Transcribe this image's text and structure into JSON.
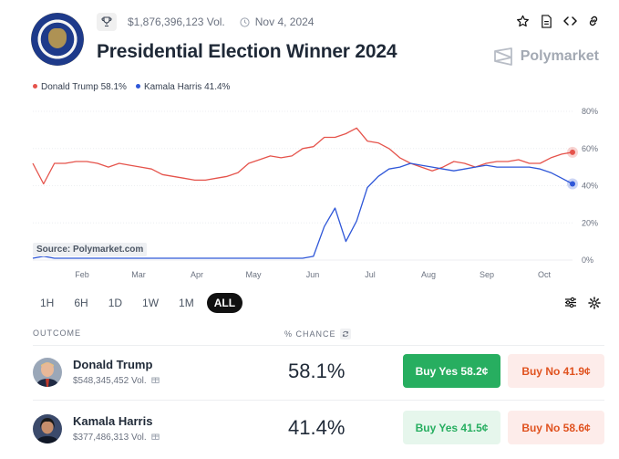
{
  "header": {
    "volume": "$1,876,396,123 Vol.",
    "date": "Nov 4, 2024",
    "title": "Presidential Election Winner 2024",
    "brand": "Polymarket",
    "icons": [
      "trophy-icon",
      "clock-icon",
      "star-icon",
      "document-icon",
      "embed-code-icon",
      "link-icon"
    ]
  },
  "legend": [
    {
      "label": "Donald Trump 58.1%",
      "color": "#e5534b"
    },
    {
      "label": "Kamala Harris 41.4%",
      "color": "#2f57d8"
    }
  ],
  "chart_data": {
    "type": "line",
    "x_labels": [
      "Feb",
      "Mar",
      "Apr",
      "May",
      "Jun",
      "Jul",
      "Aug",
      "Sep",
      "Oct"
    ],
    "y_ticks": [
      "80%",
      "60%",
      "40%",
      "20%",
      "0%"
    ],
    "ylim": [
      0,
      80
    ],
    "source": "Source: Polymarket.com",
    "series": [
      {
        "name": "Donald Trump",
        "color": "#e5534b",
        "values": [
          52,
          41,
          52,
          52,
          53,
          53,
          52,
          50,
          52,
          51,
          50,
          49,
          46,
          45,
          44,
          43,
          43,
          44,
          45,
          47,
          52,
          54,
          56,
          55,
          56,
          60,
          61,
          66,
          66,
          68,
          71,
          64,
          63,
          60,
          55,
          52,
          50,
          48,
          50,
          53,
          52,
          50,
          52,
          53,
          53,
          54,
          52,
          52,
          55,
          57,
          58
        ]
      },
      {
        "name": "Kamala Harris",
        "color": "#2f57d8",
        "values": [
          1,
          2,
          1,
          1,
          1,
          1,
          1,
          1,
          1,
          1,
          1,
          1,
          1,
          1,
          1,
          1,
          1,
          1,
          1,
          1,
          1,
          1,
          1,
          1,
          1,
          1,
          2,
          18,
          28,
          10,
          21,
          39,
          45,
          49,
          50,
          52,
          51,
          50,
          49,
          48,
          49,
          50,
          51,
          50,
          50,
          50,
          50,
          49,
          47,
          44,
          41
        ]
      }
    ]
  },
  "ranges": [
    "1H",
    "6H",
    "1D",
    "1W",
    "1M",
    "ALL"
  ],
  "active_range": "ALL",
  "table": {
    "col_outcome": "OUTCOME",
    "col_chance": "% CHANCE",
    "rows": [
      {
        "name": "Donald Trump",
        "volume": "$548,345,452 Vol.",
        "chance": "58.1%",
        "yes": "Buy Yes 58.2¢",
        "no": "Buy No 41.9¢"
      },
      {
        "name": "Kamala Harris",
        "volume": "$377,486,313 Vol.",
        "chance": "41.4%",
        "yes": "Buy Yes 41.5¢",
        "no": "Buy No 58.6¢"
      }
    ]
  }
}
